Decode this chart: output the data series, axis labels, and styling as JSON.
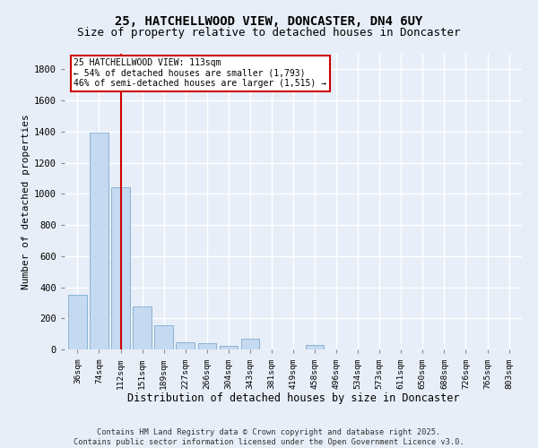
{
  "title1": "25, HATCHELLWOOD VIEW, DONCASTER, DN4 6UY",
  "title2": "Size of property relative to detached houses in Doncaster",
  "xlabel": "Distribution of detached houses by size in Doncaster",
  "ylabel": "Number of detached properties",
  "categories": [
    "36sqm",
    "74sqm",
    "112sqm",
    "151sqm",
    "189sqm",
    "227sqm",
    "266sqm",
    "304sqm",
    "343sqm",
    "381sqm",
    "419sqm",
    "458sqm",
    "496sqm",
    "534sqm",
    "573sqm",
    "611sqm",
    "650sqm",
    "688sqm",
    "726sqm",
    "765sqm",
    "803sqm"
  ],
  "values": [
    350,
    1395,
    1040,
    278,
    155,
    45,
    42,
    22,
    70,
    0,
    0,
    30,
    0,
    0,
    0,
    0,
    0,
    0,
    0,
    0,
    0
  ],
  "bar_color": "#c5d9f1",
  "bar_edge_color": "#8ab4d4",
  "redline_index": 2,
  "annotation_line1": "25 HATCHELLWOOD VIEW: 113sqm",
  "annotation_line2": "← 54% of detached houses are smaller (1,793)",
  "annotation_line3": "46% of semi-detached houses are larger (1,515) →",
  "annotation_box_color": "#ffffff",
  "annotation_box_edge": "#cc0000",
  "footer1": "Contains HM Land Registry data © Crown copyright and database right 2025.",
  "footer2": "Contains public sector information licensed under the Open Government Licence v3.0.",
  "ylim": [
    0,
    1900
  ],
  "yticks": [
    0,
    200,
    400,
    600,
    800,
    1000,
    1200,
    1400,
    1600,
    1800
  ],
  "bg_color": "#e8eef8",
  "plot_bg": "#e8eef8",
  "grid_color": "#ffffff",
  "title1_fontsize": 10,
  "title2_fontsize": 9,
  "xlabel_fontsize": 8.5,
  "ylabel_fontsize": 8
}
